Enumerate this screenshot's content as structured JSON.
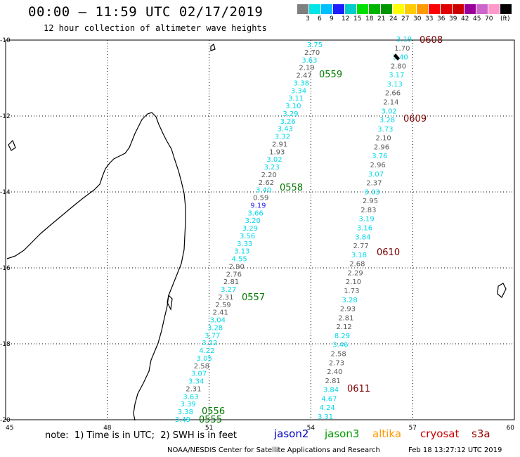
{
  "header": {
    "title": "00:00 – 11:59 UTC 02/17/2019",
    "subtitle": "12 hour collection of altimeter wave heights"
  },
  "colorbar": {
    "colors": [
      "#7f7f7f",
      "#00e5e5",
      "#00bfff",
      "#1e1eff",
      "#00cccc",
      "#00e000",
      "#00b400",
      "#009600",
      "#ffff00",
      "#ffcc00",
      "#ff9900",
      "#ff0000",
      "#e00000",
      "#cc0000",
      "#990099",
      "#cc66cc",
      "#ff99cc",
      "#000000"
    ],
    "labels": [
      "3",
      "6",
      "9",
      "12",
      "15",
      "18",
      "21",
      "24",
      "27",
      "30",
      "33",
      "36",
      "39",
      "42",
      "45",
      "70"
    ],
    "unit": "(ft)"
  },
  "axes": {
    "lon_labels": [
      "45",
      "48",
      "51",
      "54",
      "57",
      "60"
    ],
    "lat_labels": [
      "-10",
      "-12",
      "-14",
      "-16",
      "-18",
      "-20"
    ]
  },
  "passes": [
    {
      "id": "0608",
      "color": "#7a0000"
    },
    {
      "id": "0609",
      "color": "#7a0000"
    },
    {
      "id": "0610",
      "color": "#7a0000"
    },
    {
      "id": "0611",
      "color": "#7a0000"
    },
    {
      "id": "0559",
      "color": "#007a00"
    },
    {
      "id": "0558",
      "color": "#007a00"
    },
    {
      "id": "0557",
      "color": "#007a00"
    },
    {
      "id": "0556",
      "color": "#007a00"
    },
    {
      "id": "0555",
      "color": "#007a00"
    }
  ],
  "track_west": [
    "3.75",
    "2.70",
    "3.63",
    "2.19",
    "2.47",
    "3.38",
    "3.34",
    "3.11",
    "3.10",
    "3.29",
    "3.26",
    "3.43",
    "3.32",
    "2.91",
    "1.93",
    "3.02",
    "3.23",
    "2.20",
    "2.62",
    "3.40",
    "0.59",
    "9.19",
    "3.66",
    "3.20",
    "3.29",
    "3.56",
    "3.33",
    "3.13",
    "4.55",
    "2.90",
    "2.76",
    "2.81",
    "3.27",
    "2.31",
    "2.59",
    "2.41",
    "3.04",
    "3.28",
    "3.77",
    "3.22",
    "4.22",
    "3.05",
    "2.58",
    "3.07",
    "3.34",
    "2.31",
    "3.63",
    "3.39",
    "3.38",
    "3.49"
  ],
  "track_east": [
    "3.19",
    "1.70",
    "3.40",
    "2.80",
    "3.17",
    "3.13",
    "2.66",
    "2.14",
    "3.02",
    "3.28",
    "3.73",
    "2.10",
    "2.96",
    "3.76",
    "2.96",
    "3.07",
    "2.37",
    "3.03",
    "2.95",
    "2.83",
    "3.19",
    "3.16",
    "3.84",
    "2.77",
    "3.18",
    "2.68",
    "2.29",
    "2.10",
    "1.73",
    "3.28",
    "2.93",
    "2.81",
    "2.12",
    "8.29",
    "3.46",
    "2.58",
    "2.73",
    "2.40",
    "2.81",
    "3.84",
    "4.67",
    "4.24",
    "3.31"
  ],
  "footer": {
    "note": "note:  1) Time is in UTC;  2) SWH is in feet",
    "satellites": [
      {
        "name": "jason2",
        "color": "#0000cc"
      },
      {
        "name": "jason3",
        "color": "#009900"
      },
      {
        "name": "altika",
        "color": "#ff9900"
      },
      {
        "name": "cryosat",
        "color": "#cc0000"
      },
      {
        "name": "s3a",
        "color": "#990000"
      }
    ],
    "credit": "NOAA/NESDIS Center for Satellite Applications and Research",
    "timestamp": "Feb 18 13:27:12 UTC 2019"
  }
}
